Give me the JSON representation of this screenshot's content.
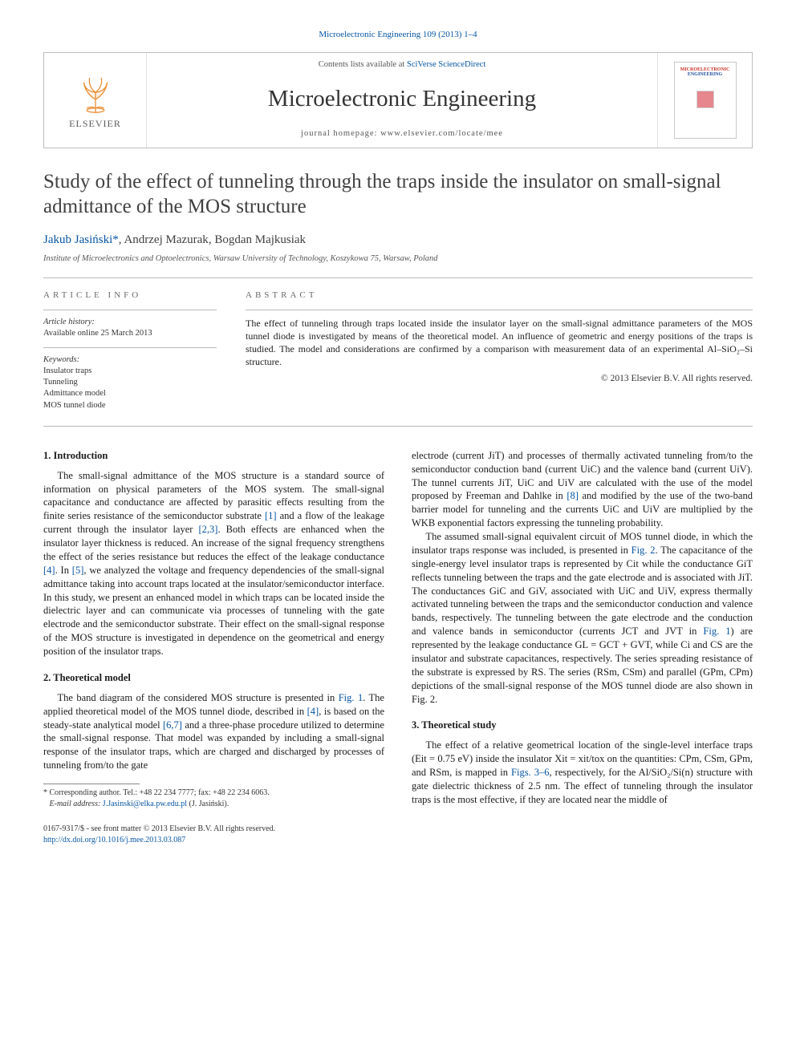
{
  "colors": {
    "link": "#0856a3",
    "rule": "#b9b9b9",
    "elsevier_orange": "#e98b2e",
    "cover_red": "#c83028",
    "cover_blue": "#1e4e9c",
    "cover_chip": "#e6868d"
  },
  "top_reference": {
    "prefix": "",
    "linked": "Microelectronic Engineering 109 (2013) 1–4"
  },
  "banner": {
    "publisher": "ELSEVIER",
    "contents_prefix": "Contents lists available at ",
    "contents_link": "SciVerse ScienceDirect",
    "journal_name": "Microelectronic Engineering",
    "homepage_prefix": "journal homepage: ",
    "homepage_url": "www.elsevier.com/locate/mee",
    "cover_line1": "MICROELECTRONIC",
    "cover_line2": "ENGINEERING"
  },
  "title": "Study of the effect of tunneling through the traps inside the insulator on small-signal admittance of the MOS structure",
  "authors": {
    "a1": "Jakub Jasiński",
    "a1_corr": "*",
    "a2": "Andrzej Mazurak",
    "a3": "Bogdan Majkusiak",
    "sep": ", "
  },
  "affiliation": "Institute of Microelectronics and Optoelectronics, Warsaw University of Technology, Koszykowa 75, Warsaw, Poland",
  "info": {
    "heading": "ARTICLE INFO",
    "history_label": "Article history:",
    "history_value": "Available online 25 March 2013",
    "keywords_label": "Keywords:",
    "keywords": [
      "Insulator traps",
      "Tunneling",
      "Admittance model",
      "MOS tunnel diode"
    ]
  },
  "abstract": {
    "heading": "ABSTRACT",
    "text": "The effect of tunneling through traps located inside the insulator layer on the small-signal admittance parameters of the MOS tunnel diode is investigated by means of the theoretical model. An influence of geometric and energy positions of the traps is studied. The model and considerations are confirmed by a comparison with measurement data of an experimental Al–SiO₂–Si structure.",
    "copyright": "© 2013 Elsevier B.V. All rights reserved."
  },
  "sections": {
    "s1_heading": "1. Introduction",
    "s1_p1": "The small-signal admittance of the MOS structure is a standard source of information on physical parameters of the MOS system. The small-signal capacitance and conductance are affected by parasitic effects resulting from the finite series resistance of the semiconductor substrate [1] and a flow of the leakage current through the insulator layer [2,3]. Both effects are enhanced when the insulator layer thickness is reduced. An increase of the signal frequency strengthens the effect of the series resistance but reduces the effect of the leakage conductance [4]. In [5], we analyzed the voltage and frequency dependencies of the small-signal admittance taking into account traps located at the insulator/semiconductor interface. In this study, we present an enhanced model in which traps can be located inside the dielectric layer and can communicate via processes of tunneling with the gate electrode and the semiconductor substrate. Their effect on the small-signal response of the MOS structure is investigated in dependence on the geometrical and energy position of the insulator traps.",
    "s2_heading": "2. Theoretical model",
    "s2_p1": "The band diagram of the considered MOS structure is presented in Fig. 1. The applied theoretical model of the MOS tunnel diode, described in [4], is based on the steady-state analytical model [6,7] and a three-phase procedure utilized to determine the small-signal response. That model was expanded by including a small-signal response of the insulator traps, which are charged and discharged by processes of tunneling from/to the gate",
    "s2_p1_cont": "electrode (current JiT) and processes of thermally activated tunneling from/to the semiconductor conduction band (current UiC) and the valence band (current UiV). The tunnel currents JiT, UiC and UiV are calculated with the use of the model proposed by Freeman and Dahlke in [8] and modified by the use of the two-band barrier model for tunneling and the currents UiC and UiV are multiplied by the WKB exponential factors expressing the tunneling probability.",
    "s2_p2": "The assumed small-signal equivalent circuit of MOS tunnel diode, in which the insulator traps response was included, is presented in Fig. 2. The capacitance of the single-energy level insulator traps is represented by Cit while the conductance GiT reflects tunneling between the traps and the gate electrode and is associated with JiT. The conductances GiC and GiV, associated with UiC and UiV, express thermally activated tunneling between the traps and the semiconductor conduction and valence bands, respectively. The tunneling between the gate electrode and the conduction and valence bands in semiconductor (currents JCT and JVT in Fig. 1) are represented by the leakage conductance GL = GCT + GVT, while Ci and CS are the insulator and substrate capacitances, respectively. The series spreading resistance of the substrate is expressed by RS. The series (RSm, CSm) and parallel (GPm, CPm) depictions of the small-signal response of the MOS tunnel diode are also shown in Fig. 2.",
    "s3_heading": "3. Theoretical study",
    "s3_p1": "The effect of a relative geometrical location of the single-level interface traps (Eit = 0.75 eV) inside the insulator Xit = xit/tox on the quantities: CPm, CSm, GPm, and RSm, is mapped in Figs. 3–6, respectively, for the Al/SiO₂/Si(n) structure with gate dielectric thickness of 2.5 nm. The effect of tunneling through the insulator traps is the most effective, if they are located near the middle of"
  },
  "refs_inline": {
    "r1": "[1]",
    "r23": "[2,3]",
    "r4_a": "[4]",
    "r5": "[5]",
    "fig1_a": "Fig. 1",
    "r4_b": "[4]",
    "r67": "[6,7]",
    "r8": "[8]",
    "fig2_a": "Fig. 2",
    "fig1_b": "Fig. 1",
    "fig2_b": "Fig. 2",
    "figs36": "Figs. 3–6"
  },
  "footnote": {
    "marker": "*",
    "label": " Corresponding author. Tel.: +48 22 234 7777; fax: +48 22 234 6063.",
    "email_label": "E-mail address: ",
    "email": "J.Jasinski@elka.pw.edu.pl",
    "email_paren": " (J. Jasiński)."
  },
  "bottom": {
    "line1_front": "0167-9317/$ - see front matter © 2013 Elsevier B.V. All rights reserved.",
    "doi": "http://dx.doi.org/10.1016/j.mee.2013.03.087"
  }
}
